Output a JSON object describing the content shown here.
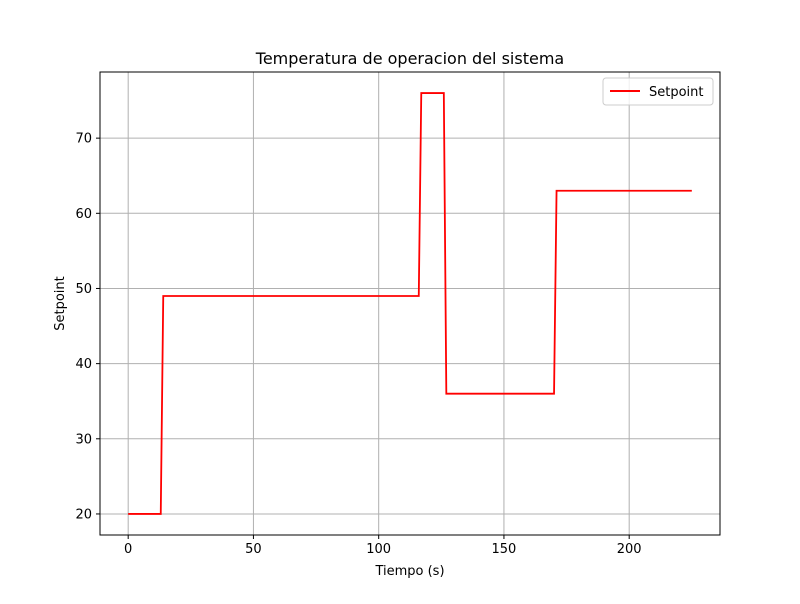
{
  "chart_data": {
    "type": "line",
    "title": "Temperatura de operacion del sistema",
    "xlabel": "Tiempo (s)",
    "ylabel": "Setpoint",
    "xlim": [
      -11.25,
      236.25
    ],
    "ylim": [
      17.2,
      78.8
    ],
    "xticks": [
      0,
      50,
      100,
      150,
      200
    ],
    "yticks": [
      20,
      30,
      40,
      50,
      60,
      70
    ],
    "grid": true,
    "legend_position": "top-right",
    "series": [
      {
        "name": "Setpoint",
        "color": "#ff0000",
        "x": [
          0,
          13,
          14,
          116,
          117,
          126,
          127,
          170,
          171,
          225
        ],
        "y": [
          20,
          20,
          49,
          49,
          76,
          76,
          36,
          36,
          63,
          63
        ]
      }
    ]
  }
}
